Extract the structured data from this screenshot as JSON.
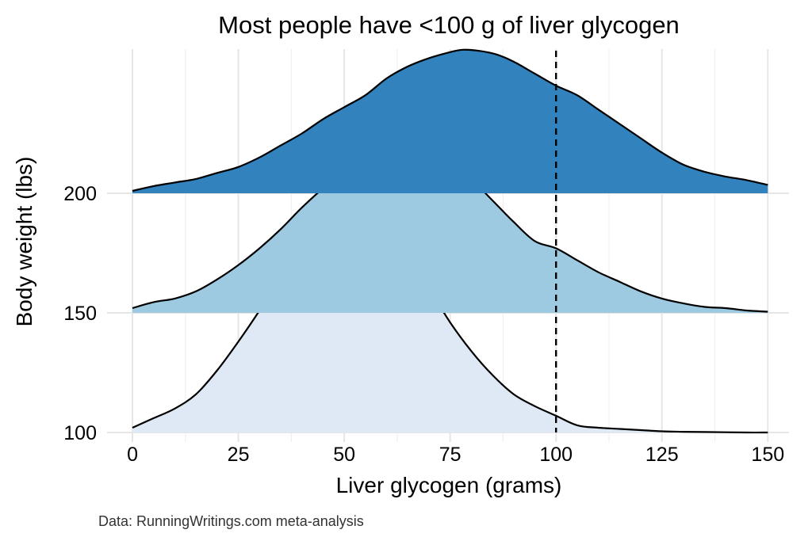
{
  "chart_data": {
    "type": "area",
    "subtype": "ridgeline",
    "title": "Most people have <100 g of liver glycogen",
    "xlabel": "Liver glycogen (grams)",
    "ylabel": "Body weight (lbs)",
    "caption": "Data: RunningWritings.com meta-analysis",
    "xlim": [
      -6,
      155
    ],
    "ylim": [
      100,
      260
    ],
    "x_ticks": [
      0,
      25,
      50,
      75,
      100,
      125,
      150
    ],
    "x_tick_labels": [
      "0",
      "25",
      "50",
      "75",
      "100",
      "125",
      "150"
    ],
    "y_ticks": [
      100,
      150,
      200
    ],
    "y_tick_labels": [
      "100",
      "150",
      "200"
    ],
    "grid": true,
    "reference_line": {
      "x": 100,
      "style": "dashed",
      "color": "#000000"
    },
    "series": [
      {
        "baseline": 100,
        "fill": "#dee9f5",
        "x": [
          0,
          5,
          10,
          15,
          20,
          25,
          30,
          35,
          40,
          45,
          48,
          52,
          55,
          58,
          62,
          65,
          70,
          75,
          80,
          85,
          90,
          95,
          100,
          105,
          110,
          115,
          120,
          125,
          130,
          135,
          140,
          145,
          150
        ],
        "y": [
          102,
          106,
          110,
          116,
          126,
          138,
          151,
          165,
          177,
          186,
          189,
          189,
          187,
          184,
          176,
          171,
          160,
          146,
          134,
          124,
          116,
          111,
          107,
          103,
          102,
          101.5,
          101,
          100.5,
          100.3,
          100.2,
          100.1,
          100,
          100
        ]
      },
      {
        "baseline": 150,
        "fill": "#9ecae1",
        "x": [
          0,
          5,
          10,
          15,
          20,
          25,
          30,
          35,
          40,
          45,
          50,
          55,
          60,
          63,
          66,
          70,
          75,
          80,
          85,
          90,
          95,
          100,
          105,
          110,
          115,
          120,
          125,
          130,
          135,
          140,
          145,
          150
        ],
        "y": [
          152,
          154.5,
          156,
          159,
          164,
          170,
          177,
          185,
          194,
          202,
          208,
          212,
          217,
          220,
          220,
          218,
          214,
          206,
          197,
          188,
          180,
          177,
          172,
          167,
          163,
          159,
          156,
          154,
          152.5,
          152,
          151,
          150.5
        ]
      },
      {
        "baseline": 200,
        "fill": "#3182bd",
        "x": [
          0,
          5,
          10,
          15,
          20,
          25,
          30,
          35,
          40,
          45,
          50,
          55,
          60,
          65,
          70,
          75,
          78,
          82,
          86,
          90,
          95,
          100,
          105,
          110,
          115,
          120,
          125,
          130,
          135,
          140,
          145,
          150
        ],
        "y": [
          201,
          203,
          204.5,
          206,
          208.5,
          211,
          215,
          220,
          225,
          231,
          236,
          241,
          248,
          253,
          256.5,
          259,
          260,
          259.5,
          258,
          255,
          250,
          245,
          241,
          235,
          229,
          223,
          217,
          212,
          209,
          207,
          205.5,
          203.5
        ]
      }
    ]
  }
}
